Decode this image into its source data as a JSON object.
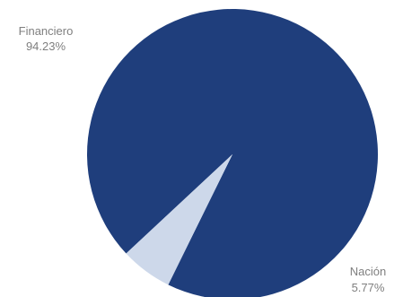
{
  "chart_data": {
    "type": "pie",
    "categories": [
      "Financiero",
      "Nación"
    ],
    "values": [
      94.23,
      5.77
    ],
    "value_labels": [
      "94.23%",
      "5.77%"
    ],
    "colors": [
      "#1f3e7c",
      "#cdd8ea"
    ],
    "label_color": "#7f7f7f",
    "start_angle_deg": 137,
    "direction": "clockwise",
    "legend": "none"
  }
}
